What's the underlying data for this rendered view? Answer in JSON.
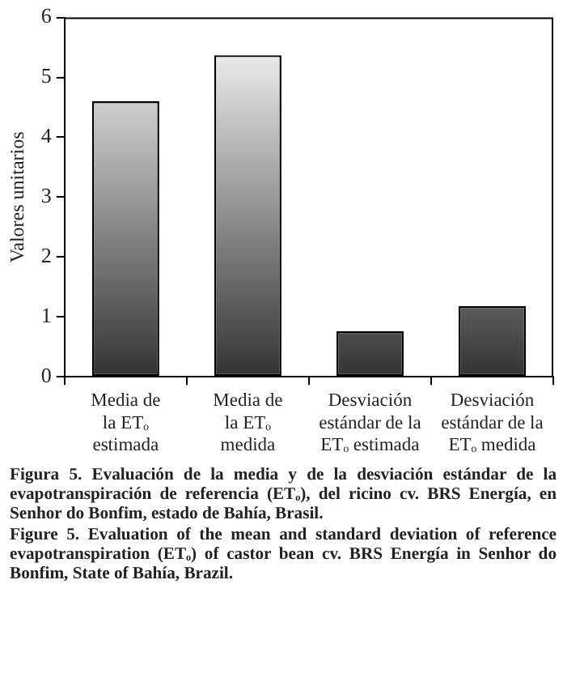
{
  "chart_data": {
    "type": "bar",
    "ylabel": "Valores unitarios",
    "categories": [
      "Media de\nla ETₒ\nestimada",
      "Media de\nla ETₒ\nmedida",
      "Desviación\nestándar de la\nETₒ estimada",
      "Desviación\nestándar de la\nETₒ medida"
    ],
    "values": [
      4.6,
      5.37,
      0.76,
      1.18
    ],
    "color": "#333333",
    "ylim": [
      0,
      6
    ],
    "yticks": [
      0,
      1,
      2,
      3,
      4,
      5,
      6
    ],
    "grid": false,
    "legend": false,
    "annotations": [
      "Figura 5. Evaluación de la media y de la desviación estándar de la evapotranspiración de referencia (ETₒ), del ricino cv. BRS Energía, en Senhor do Bonfim, estado de Bahía, Brasil.",
      "Figure 5. Evaluation of the mean and standard deviation of reference evapotranspiration (ETₒ) of castor bean cv. BRS Energía in Senhor do Bonfim, State of Bahía, Brazil."
    ]
  }
}
